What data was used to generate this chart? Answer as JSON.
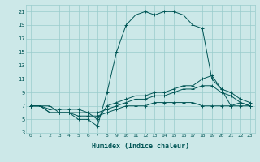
{
  "xlabel": "Humidex (Indice chaleur)",
  "bg_color": "#cce8e8",
  "grid_color": "#99cccc",
  "line_color": "#005555",
  "x": [
    0,
    1,
    2,
    3,
    4,
    5,
    6,
    7,
    8,
    9,
    10,
    11,
    12,
    13,
    14,
    15,
    16,
    17,
    18,
    19,
    20,
    21,
    22,
    23
  ],
  "curve1": [
    7,
    7,
    7,
    6,
    6,
    5,
    5,
    4,
    9,
    15,
    19,
    20.5,
    21,
    20.5,
    21,
    21,
    20.5,
    19,
    18.5,
    11,
    9.5,
    7,
    7.5,
    7
  ],
  "curve2": [
    7,
    7,
    6,
    6,
    6,
    6,
    6,
    5,
    7,
    7.5,
    8,
    8.5,
    8.5,
    9,
    9,
    9.5,
    10,
    10,
    11,
    11.5,
    9.5,
    9,
    8,
    7.5
  ],
  "curve3": [
    7,
    7,
    6.5,
    6.5,
    6.5,
    6.5,
    6,
    6,
    6.5,
    7,
    7.5,
    8,
    8,
    8.5,
    8.5,
    9,
    9.5,
    9.5,
    10,
    10,
    9,
    8.5,
    7.5,
    7
  ],
  "curve4": [
    7,
    7,
    6,
    6,
    6,
    5.5,
    5.5,
    5.5,
    6,
    6.5,
    7,
    7,
    7,
    7.5,
    7.5,
    7.5,
    7.5,
    7.5,
    7,
    7,
    7,
    7,
    7,
    7
  ],
  "ylim": [
    3,
    22
  ],
  "yticks": [
    3,
    5,
    7,
    9,
    11,
    13,
    15,
    17,
    19,
    21
  ],
  "xlim": [
    -0.5,
    23.5
  ]
}
